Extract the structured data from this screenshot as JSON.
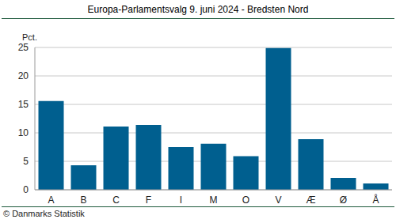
{
  "chart_data": {
    "type": "bar",
    "title": "Europa-Parlamentsvalg 9. juni 2024 - Bredsten Nord",
    "ylabel": "Pct.",
    "source": "© Danmarks Statistik",
    "categories": [
      "A",
      "B",
      "C",
      "F",
      "I",
      "M",
      "O",
      "V",
      "Æ",
      "Ø",
      "Å"
    ],
    "values": [
      15.6,
      4.3,
      11.1,
      11.4,
      7.5,
      8.1,
      5.9,
      24.9,
      8.9,
      2.1,
      1.1
    ],
    "color": "#005f8f",
    "ylim": [
      0,
      25
    ],
    "yticks": [
      0,
      5,
      10,
      15,
      20,
      25
    ],
    "grid": true
  }
}
